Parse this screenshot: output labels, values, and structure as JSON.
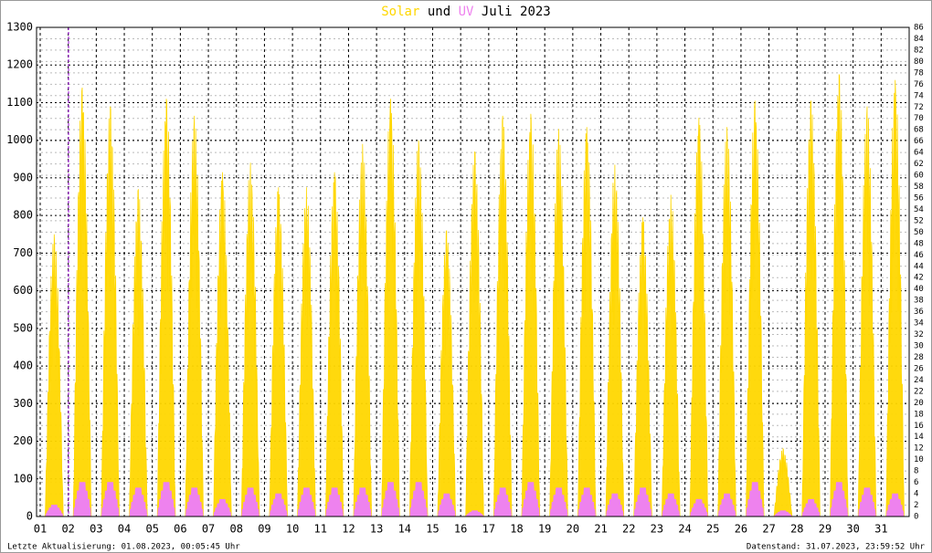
{
  "chart_data": {
    "type": "area",
    "title_parts": [
      "und",
      "Juli 2023"
    ],
    "categories": [
      "01",
      "02",
      "03",
      "04",
      "05",
      "06",
      "07",
      "08",
      "09",
      "10",
      "11",
      "12",
      "13",
      "14",
      "15",
      "16",
      "17",
      "18",
      "19",
      "20",
      "21",
      "22",
      "23",
      "24",
      "25",
      "26",
      "27",
      "28",
      "29",
      "30",
      "31"
    ],
    "series": [
      {
        "name": "Solar",
        "color": "#ffd700",
        "axis": "y",
        "values": [
          750,
          1140,
          1090,
          870,
          1110,
          1065,
          915,
          940,
          875,
          875,
          915,
          990,
          1110,
          1000,
          760,
          970,
          1065,
          1070,
          1030,
          1035,
          935,
          795,
          855,
          1060,
          1035,
          1105,
          180,
          1105,
          1175,
          1090,
          1160
        ]
      },
      {
        "name": "UV",
        "color": "#ee82ee",
        "axis": "y2",
        "values": [
          2,
          6,
          6,
          5,
          6,
          5,
          3,
          5,
          4,
          5,
          5,
          5,
          6,
          6,
          4,
          1,
          5,
          6,
          5,
          5,
          4,
          5,
          4,
          3,
          4,
          6,
          1,
          3,
          6,
          5,
          4
        ]
      }
    ],
    "ylim": [
      0,
      1300
    ],
    "yticks": [
      0,
      100,
      200,
      300,
      400,
      500,
      600,
      700,
      800,
      900,
      1000,
      1100,
      1200,
      1300
    ],
    "y2lim": [
      0,
      86
    ],
    "y2ticks": [
      0,
      2,
      4,
      6,
      8,
      10,
      12,
      14,
      16,
      18,
      20,
      22,
      24,
      26,
      28,
      30,
      32,
      34,
      36,
      38,
      40,
      42,
      44,
      46,
      48,
      50,
      52,
      54,
      56,
      58,
      60,
      62,
      64,
      66,
      68,
      70,
      72,
      74,
      76,
      78,
      80,
      82,
      84,
      86
    ],
    "grid": true,
    "footer_left": "Letzte Aktualisierung: 01.08.2023, 00:05:45 Uhr",
    "footer_right": "Datenstand: 31.07.2023, 23:59:52 Uhr"
  }
}
